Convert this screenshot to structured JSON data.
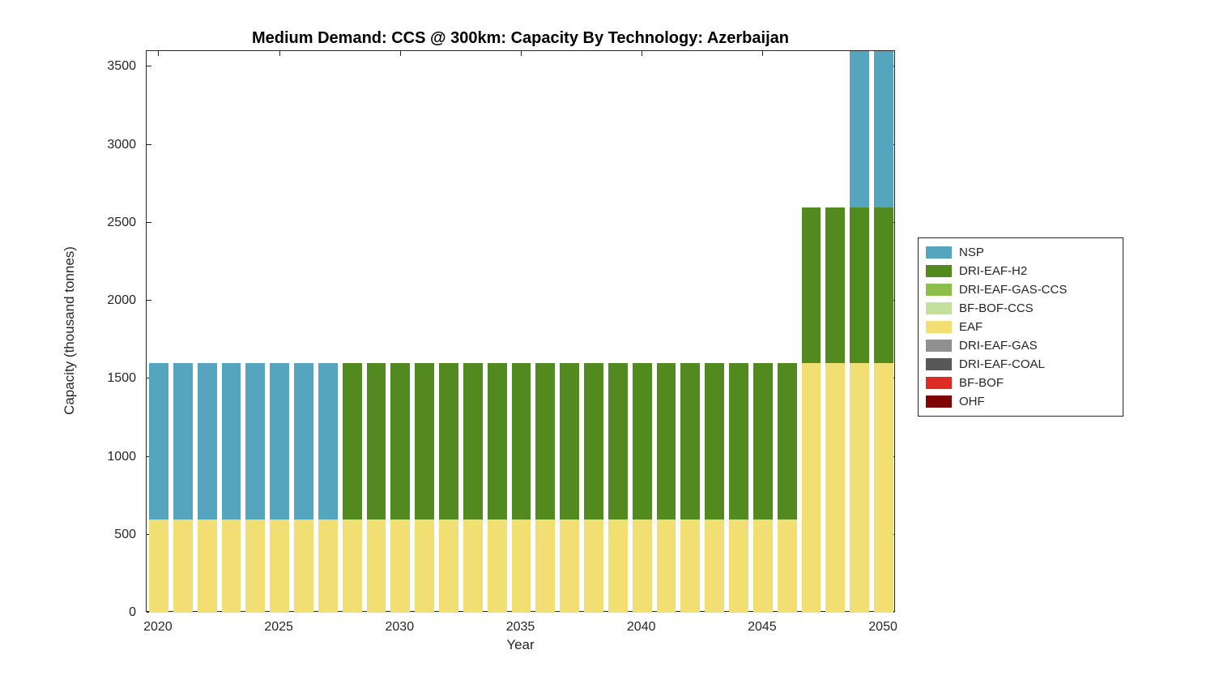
{
  "chart_data": {
    "type": "bar",
    "stacked": true,
    "title": "Medium Demand: CCS @ 300km: Capacity By Technology: Azerbaijan",
    "xlabel": "Year",
    "ylabel": "Capacity (thousand tonnes)",
    "xlim": [
      2019.5,
      2050.5
    ],
    "ylim": [
      0,
      3600
    ],
    "xticks": [
      2020,
      2025,
      2030,
      2035,
      2040,
      2045,
      2050
    ],
    "yticks": [
      0,
      500,
      1000,
      1500,
      2000,
      2500,
      3000,
      3500
    ],
    "bar_width": 0.8,
    "grid": false,
    "legend_position": "right-outside",
    "years": [
      2020,
      2021,
      2022,
      2023,
      2024,
      2025,
      2026,
      2027,
      2028,
      2029,
      2030,
      2031,
      2032,
      2033,
      2034,
      2035,
      2036,
      2037,
      2038,
      2039,
      2040,
      2041,
      2042,
      2043,
      2044,
      2045,
      2046,
      2047,
      2048,
      2049,
      2050
    ],
    "stack_order": "bottom-to-top",
    "series": [
      {
        "name": "EAF",
        "color": "#F2DF73",
        "values": [
          600,
          600,
          600,
          600,
          600,
          600,
          600,
          600,
          600,
          600,
          600,
          600,
          600,
          600,
          600,
          600,
          600,
          600,
          600,
          600,
          600,
          600,
          600,
          600,
          600,
          600,
          600,
          1600,
          1600,
          1600,
          1600
        ]
      },
      {
        "name": "DRI-EAF-H2",
        "color": "#538A20",
        "values": [
          0,
          0,
          0,
          0,
          0,
          0,
          0,
          0,
          1000,
          1000,
          1000,
          1000,
          1000,
          1000,
          1000,
          1000,
          1000,
          1000,
          1000,
          1000,
          1000,
          1000,
          1000,
          1000,
          1000,
          1000,
          1000,
          1000,
          1000,
          1000,
          1000
        ]
      },
      {
        "name": "NSP",
        "color": "#55A5BE",
        "values": [
          1000,
          1000,
          1000,
          1000,
          1000,
          1000,
          1000,
          1000,
          0,
          0,
          0,
          0,
          0,
          0,
          0,
          0,
          0,
          0,
          0,
          0,
          0,
          0,
          0,
          0,
          0,
          0,
          0,
          0,
          0,
          1000,
          1000
        ]
      }
    ],
    "legend": [
      {
        "label": "NSP",
        "color": "#55A5BE"
      },
      {
        "label": "DRI-EAF-H2",
        "color": "#538A20"
      },
      {
        "label": "DRI-EAF-GAS-CCS",
        "color": "#8CBE4A"
      },
      {
        "label": "BF-BOF-CCS",
        "color": "#C5DF9C"
      },
      {
        "label": "EAF",
        "color": "#F2DF73"
      },
      {
        "label": "DRI-EAF-GAS",
        "color": "#909090"
      },
      {
        "label": "DRI-EAF-COAL",
        "color": "#585858"
      },
      {
        "label": "BF-BOF",
        "color": "#DD2C26"
      },
      {
        "label": "OHF",
        "color": "#7D0605"
      }
    ]
  }
}
